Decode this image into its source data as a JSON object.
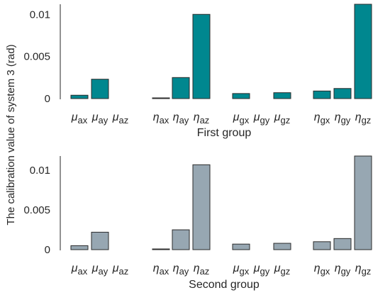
{
  "figure": {
    "ylabel": "The calibration value of system 3 (rad)"
  },
  "chart_data": [
    {
      "type": "bar",
      "xlabel": "First group",
      "ylabel": "The calibration value of system 3 (rad)",
      "ylim": [
        0,
        0.0112
      ],
      "yticks": [
        0,
        0.005,
        0.01
      ],
      "yticklabels": [
        "0",
        "0.005",
        "0.01"
      ],
      "bar_color": "#00878F",
      "categories": [
        {
          "sym": "μ",
          "sub": "ax"
        },
        {
          "sym": "μ",
          "sub": "ay"
        },
        {
          "sym": "μ",
          "sub": "az"
        },
        {
          "sym": "η",
          "sub": "ax"
        },
        {
          "sym": "η",
          "sub": "ay"
        },
        {
          "sym": "η",
          "sub": "az"
        },
        {
          "sym": "μ",
          "sub": "gx"
        },
        {
          "sym": "μ",
          "sub": "gy"
        },
        {
          "sym": "μ",
          "sub": "gz"
        },
        {
          "sym": "η",
          "sub": "gx"
        },
        {
          "sym": "η",
          "sub": "gy"
        },
        {
          "sym": "η",
          "sub": "gz"
        }
      ],
      "values": [
        0.0004,
        0.0023,
        0,
        5e-05,
        0.0025,
        0.01,
        0.0006,
        0,
        0.0007,
        0.0009,
        0.0012,
        0.0112
      ],
      "grid": false,
      "legend": "none"
    },
    {
      "type": "bar",
      "xlabel": "Second group",
      "ylabel": "The calibration value of system 3 (rad)",
      "ylim": [
        0,
        0.0118
      ],
      "yticks": [
        0,
        0.005,
        0.01
      ],
      "yticklabels": [
        "0",
        "0.005",
        "0.01"
      ],
      "bar_color": "#97A7B2",
      "categories": [
        {
          "sym": "μ",
          "sub": "ax"
        },
        {
          "sym": "μ",
          "sub": "ay"
        },
        {
          "sym": "μ",
          "sub": "az"
        },
        {
          "sym": "η",
          "sub": "ax"
        },
        {
          "sym": "η",
          "sub": "ay"
        },
        {
          "sym": "η",
          "sub": "az"
        },
        {
          "sym": "μ",
          "sub": "gx"
        },
        {
          "sym": "μ",
          "sub": "gy"
        },
        {
          "sym": "μ",
          "sub": "gz"
        },
        {
          "sym": "η",
          "sub": "gx"
        },
        {
          "sym": "η",
          "sub": "gy"
        },
        {
          "sym": "η",
          "sub": "gz"
        }
      ],
      "values": [
        0.0005,
        0.0022,
        0,
        5e-05,
        0.0025,
        0.0107,
        0.0007,
        0,
        0.0008,
        0.001,
        0.0014,
        0.0118
      ],
      "grid": false,
      "legend": "none"
    }
  ]
}
